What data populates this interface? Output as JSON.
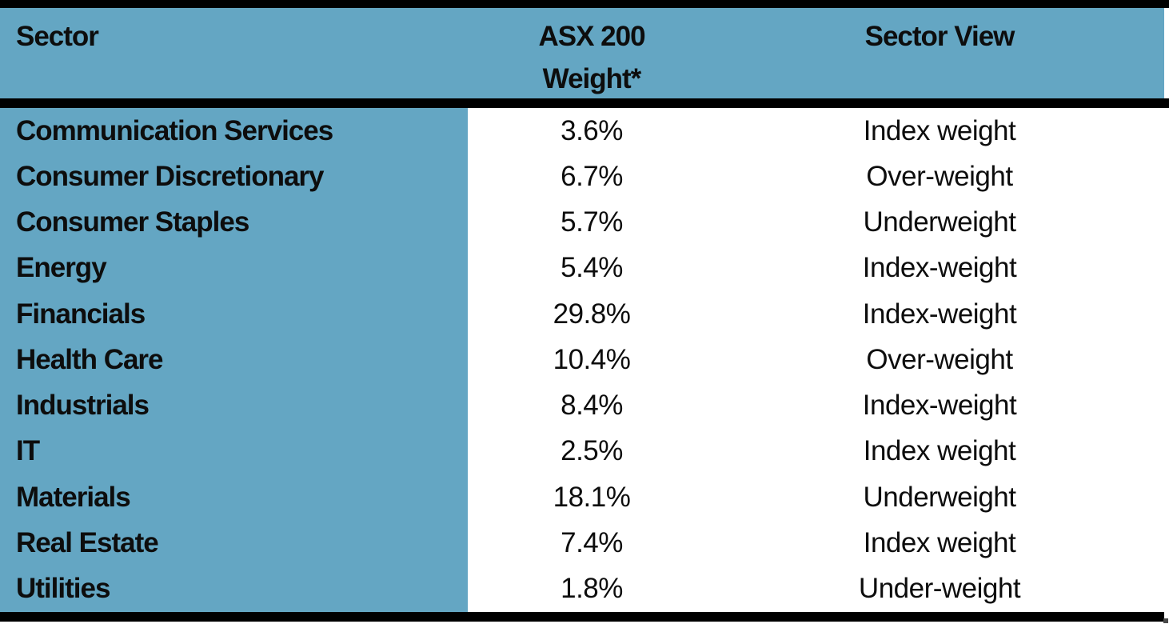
{
  "colors": {
    "header_blue": "#64a6c3",
    "border_black": "#000000",
    "text_black": "#0d0d0d",
    "body_white": "#ffffff"
  },
  "table": {
    "header": {
      "sector": "Sector",
      "weight_line1": "ASX 200",
      "weight_line2": "Weight*",
      "view": "Sector View"
    },
    "rows": [
      {
        "sector": "Communication Services",
        "weight": "3.6%",
        "view": "Index weight"
      },
      {
        "sector": "Consumer Discretionary",
        "weight": "6.7%",
        "view": "Over-weight"
      },
      {
        "sector": "Consumer Staples",
        "weight": "5.7%",
        "view": "Underweight"
      },
      {
        "sector": "Energy",
        "weight": "5.4%",
        "view": "Index-weight"
      },
      {
        "sector": "Financials",
        "weight": "29.8%",
        "view": "Index-weight"
      },
      {
        "sector": "Health Care",
        "weight": "10.4%",
        "view": "Over-weight"
      },
      {
        "sector": "Industrials",
        "weight": "8.4%",
        "view": "Index-weight"
      },
      {
        "sector": "IT",
        "weight": "2.5%",
        "view": "Index weight"
      },
      {
        "sector": "Materials",
        "weight": "18.1%",
        "view": "Underweight"
      },
      {
        "sector": "Real Estate",
        "weight": "7.4%",
        "view": "Index weight"
      },
      {
        "sector": "Utilities",
        "weight": "1.8%",
        "view": "Under-weight"
      }
    ]
  },
  "chart_data": {
    "type": "table",
    "title": "",
    "columns": [
      "Sector",
      "ASX 200 Weight*",
      "Sector View"
    ],
    "rows": [
      [
        "Communication Services",
        "3.6%",
        "Index weight"
      ],
      [
        "Consumer Discretionary",
        "6.7%",
        "Over-weight"
      ],
      [
        "Consumer Staples",
        "5.7%",
        "Underweight"
      ],
      [
        "Energy",
        "5.4%",
        "Index-weight"
      ],
      [
        "Financials",
        "29.8%",
        "Index-weight"
      ],
      [
        "Health Care",
        "10.4%",
        "Over-weight"
      ],
      [
        "Industrials",
        "8.4%",
        "Index-weight"
      ],
      [
        "IT",
        "2.5%",
        "Index weight"
      ],
      [
        "Materials",
        "18.1%",
        "Underweight"
      ],
      [
        "Real Estate",
        "7.4%",
        "Index weight"
      ],
      [
        "Utilities",
        "1.8%",
        "Under-weight"
      ]
    ],
    "weights_numeric": [
      3.6,
      6.7,
      5.7,
      5.4,
      29.8,
      10.4,
      8.4,
      2.5,
      18.1,
      7.4,
      1.8
    ],
    "layout": {
      "header_bg": "#64a6c3",
      "first_column_bg": "#64a6c3",
      "grid": "off"
    }
  }
}
